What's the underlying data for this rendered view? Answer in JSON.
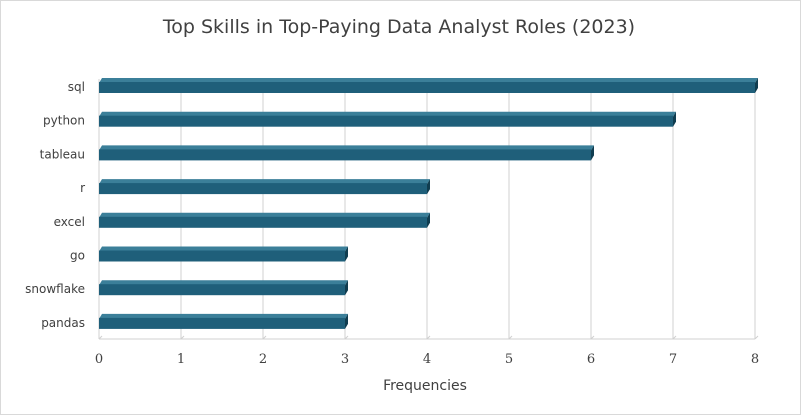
{
  "chart_data": {
    "type": "bar",
    "orientation": "horizontal",
    "title": "Top Skills in Top-Paying Data Analyst Roles (2023)",
    "xlabel": "Frequencies",
    "ylabel": "",
    "categories": [
      "sql",
      "python",
      "tableau",
      "r",
      "excel",
      "go",
      "snowflake",
      "pandas"
    ],
    "values": [
      8,
      7,
      6,
      4,
      4,
      3,
      3,
      3
    ],
    "xlim": [
      0,
      8
    ],
    "xticks": [
      0,
      1,
      2,
      3,
      4,
      5,
      6,
      7,
      8
    ],
    "grid": true,
    "legend": "none",
    "colors": {
      "bar_front": "#1f5f7a",
      "bar_top": "#3b7f99",
      "bar_side": "#103d50",
      "gridline": "#d0d0d0"
    }
  }
}
